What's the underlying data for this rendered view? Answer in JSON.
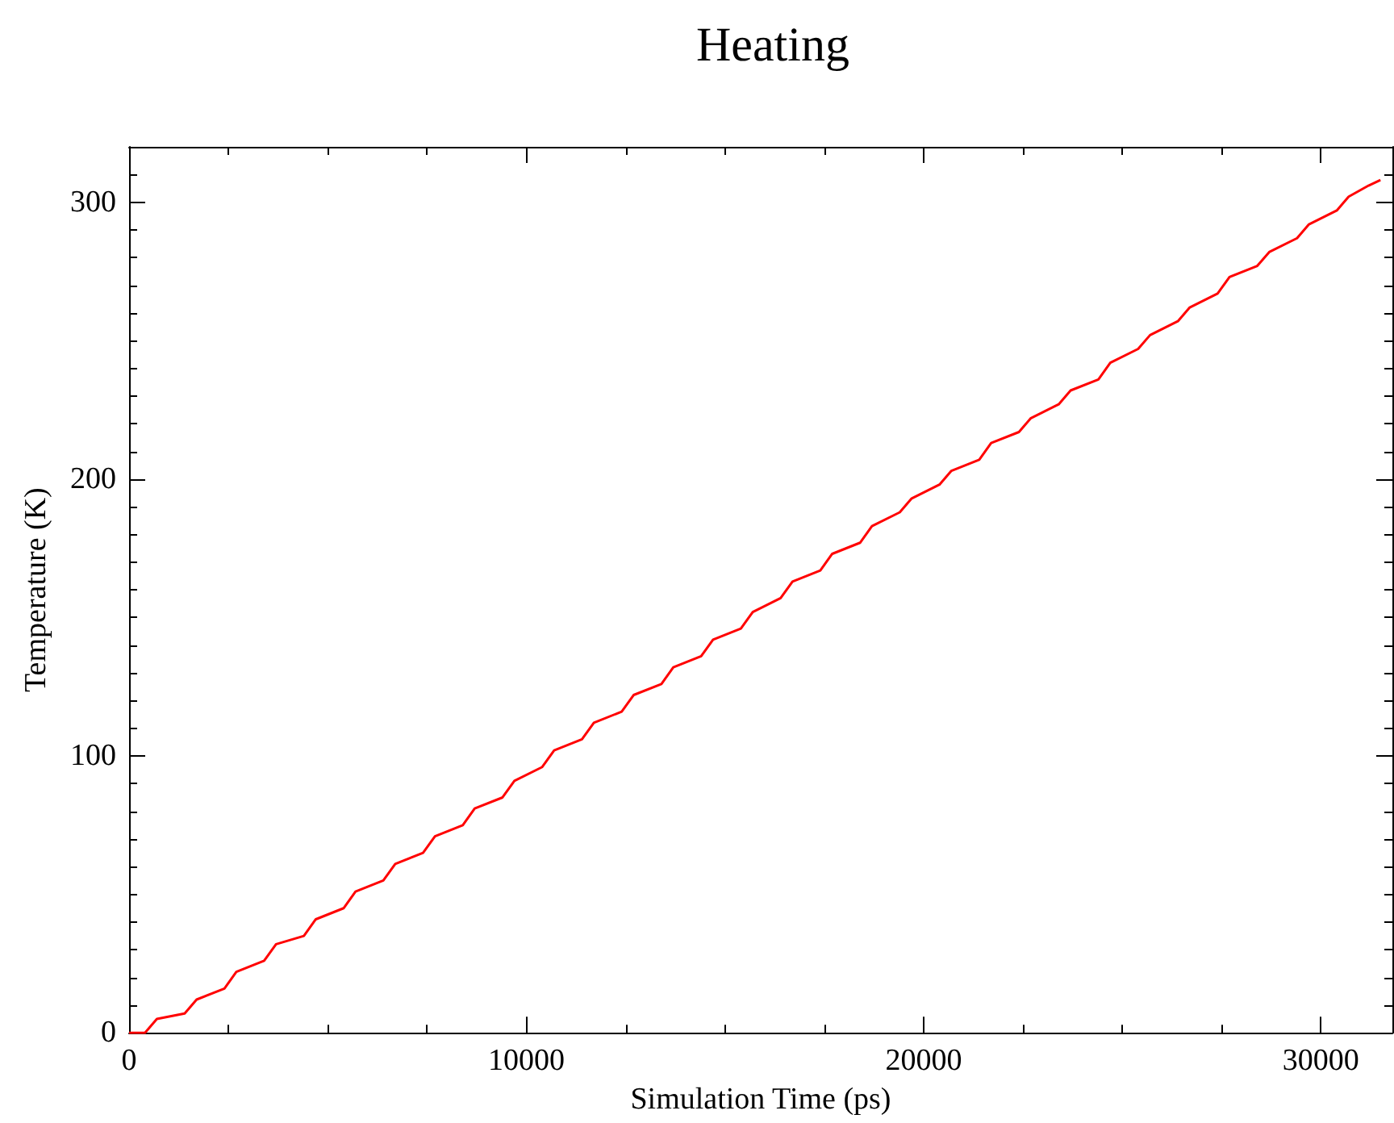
{
  "chart_data": {
    "type": "line",
    "title": "Heating",
    "xlabel": "Simulation Time (ps)",
    "ylabel": "Temperature (K)",
    "xlim": [
      0,
      31800
    ],
    "xticks": [
      0,
      10000,
      20000,
      30000
    ],
    "ylim": [
      0,
      320
    ],
    "yticks": [
      0,
      100,
      200,
      300
    ],
    "grid": false,
    "marker": "none",
    "line_style": "solid",
    "series": [
      {
        "color": "#ff0000",
        "x": [
          0,
          400,
          700,
          1400,
          1700,
          2400,
          2700,
          3400,
          3700,
          4400,
          4700,
          5400,
          5700,
          6400,
          6700,
          7400,
          7700,
          8400,
          8700,
          9400,
          9700,
          10400,
          10700,
          11400,
          11700,
          12400,
          12700,
          13400,
          13700,
          14400,
          14700,
          15400,
          15700,
          16400,
          16700,
          17400,
          17700,
          18400,
          18700,
          19400,
          19700,
          20400,
          20700,
          21400,
          21700,
          22400,
          22700,
          23400,
          23700,
          24400,
          24700,
          25400,
          25700,
          26400,
          26700,
          27400,
          27700,
          28400,
          28700,
          29400,
          29700,
          30400,
          30700,
          31200,
          31500
        ],
        "values": [
          0,
          0,
          5,
          7,
          12,
          16,
          22,
          26,
          32,
          35,
          41,
          45,
          51,
          55,
          61,
          65,
          71,
          75,
          81,
          85,
          91,
          96,
          102,
          106,
          112,
          116,
          122,
          126,
          132,
          136,
          142,
          146,
          152,
          157,
          163,
          167,
          173,
          177,
          183,
          188,
          193,
          198,
          203,
          207,
          213,
          217,
          222,
          227,
          232,
          236,
          242,
          247,
          252,
          257,
          262,
          267,
          273,
          277,
          282,
          287,
          292,
          297,
          302,
          306,
          308
        ]
      }
    ]
  }
}
